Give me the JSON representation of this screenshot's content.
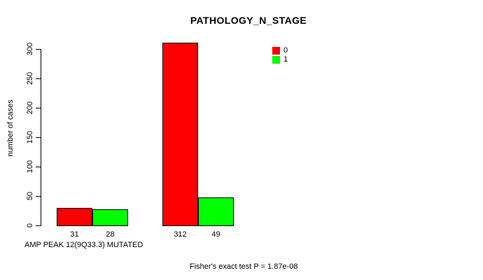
{
  "chart_data": {
    "type": "bar",
    "title": "PATHOLOGY_N_STAGE",
    "xlabel": "AMP PEAK 12(9Q33.3) MUTATED",
    "ylabel": "number of cases",
    "ylim": [
      0,
      300
    ],
    "yticks": [
      0,
      50,
      100,
      150,
      200,
      250,
      300
    ],
    "grid": false,
    "legend_position": "top-right",
    "groups": 2,
    "series": [
      {
        "name": "0",
        "color": "#ff0000",
        "values": [
          31,
          312
        ]
      },
      {
        "name": "1",
        "color": "#00ff00",
        "values": [
          28,
          49
        ]
      }
    ],
    "annotation": "Fisher's exact test P = 1.87e-08"
  }
}
